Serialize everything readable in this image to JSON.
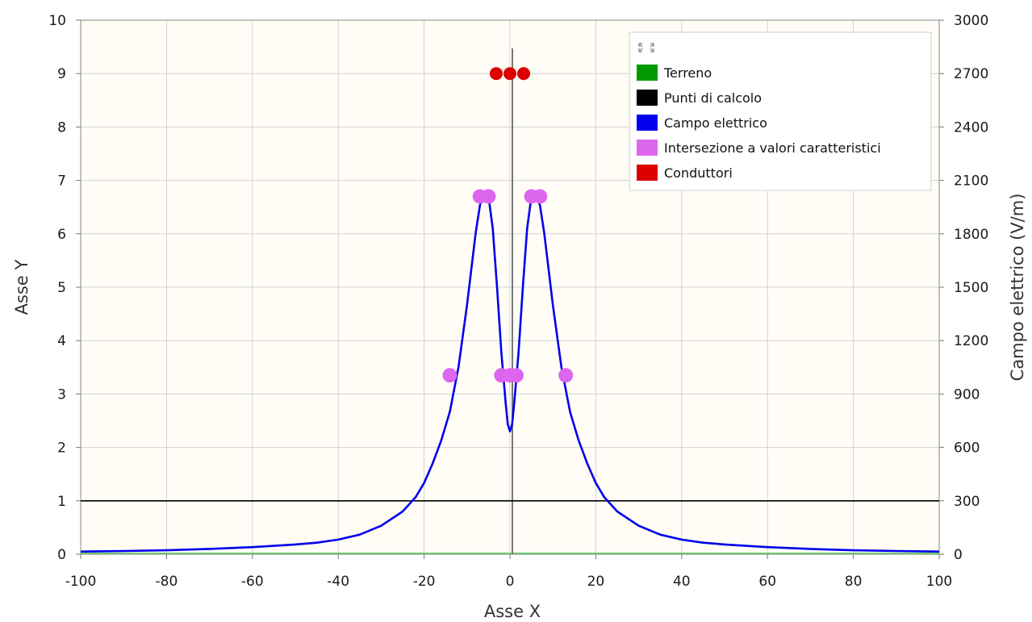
{
  "chart_data": {
    "type": "line",
    "title": "",
    "xlabel": "Asse X",
    "ylabel": "Asse Y",
    "y2label": "Campo elettrico (V/m)",
    "xlim": [
      -100,
      100
    ],
    "ylim": [
      0,
      10
    ],
    "y2lim": [
      0,
      3000
    ],
    "x_ticks": [
      "-100",
      "-80",
      "-60",
      "-40",
      "-20",
      "0",
      "20",
      "40",
      "60",
      "80",
      "100"
    ],
    "y_ticks": [
      "0",
      "1",
      "2",
      "3",
      "4",
      "5",
      "6",
      "7",
      "8",
      "9",
      "10"
    ],
    "y2_ticks": [
      "0",
      "300",
      "600",
      "900",
      "1200",
      "1500",
      "1800",
      "2100",
      "2400",
      "2700",
      "3000"
    ],
    "grid": true,
    "legend_position": "top-right",
    "legend_icon": "expand-icon",
    "series": [
      {
        "name": "Terreno",
        "color": "#009900",
        "axis": "y",
        "x": [
          -100,
          100
        ],
        "y": [
          0,
          0
        ]
      },
      {
        "name": "Punti di calcolo",
        "color": "#000000",
        "axis": "y",
        "x": [
          -100,
          100
        ],
        "y": [
          1,
          1
        ]
      },
      {
        "name": "Campo elettrico",
        "color": "#0000ee",
        "axis": "y2",
        "x": [
          -100,
          -90,
          -80,
          -70,
          -60,
          -50,
          -45,
          -40,
          -35,
          -30,
          -25,
          -22,
          -20,
          -18,
          -16,
          -14,
          -12,
          -10,
          -8,
          -7,
          -6,
          -5,
          -4,
          -3,
          -2,
          -1,
          -0.5,
          0,
          0.5,
          1,
          2,
          3,
          4,
          5,
          6,
          7,
          8,
          10,
          12,
          14,
          16,
          18,
          20,
          22,
          25,
          30,
          35,
          40,
          45,
          50,
          60,
          70,
          80,
          90,
          100
        ],
        "y": [
          15,
          18,
          22,
          30,
          40,
          55,
          65,
          82,
          110,
          160,
          240,
          320,
          400,
          510,
          640,
          800,
          1050,
          1400,
          1800,
          1960,
          2030,
          2010,
          1830,
          1500,
          1130,
          850,
          730,
          690,
          730,
          850,
          1130,
          1500,
          1830,
          2010,
          2030,
          1960,
          1800,
          1400,
          1050,
          800,
          640,
          510,
          400,
          320,
          240,
          160,
          110,
          82,
          65,
          55,
          40,
          30,
          22,
          18,
          15
        ]
      },
      {
        "name": "Intersezione a valori caratteristici",
        "color": "#dd66ee",
        "axis": "y",
        "x": [
          -14,
          -2,
          0,
          1.5,
          13,
          -7,
          -5,
          5,
          7
        ],
        "y": [
          3.35,
          3.35,
          3.35,
          3.35,
          3.35,
          6.7,
          6.7,
          6.7,
          6.7
        ]
      },
      {
        "name": "Conduttori",
        "color": "#dd0000",
        "axis": "y",
        "x": [
          -3.2,
          0,
          3.2
        ],
        "y": [
          9,
          9,
          9
        ]
      }
    ]
  }
}
